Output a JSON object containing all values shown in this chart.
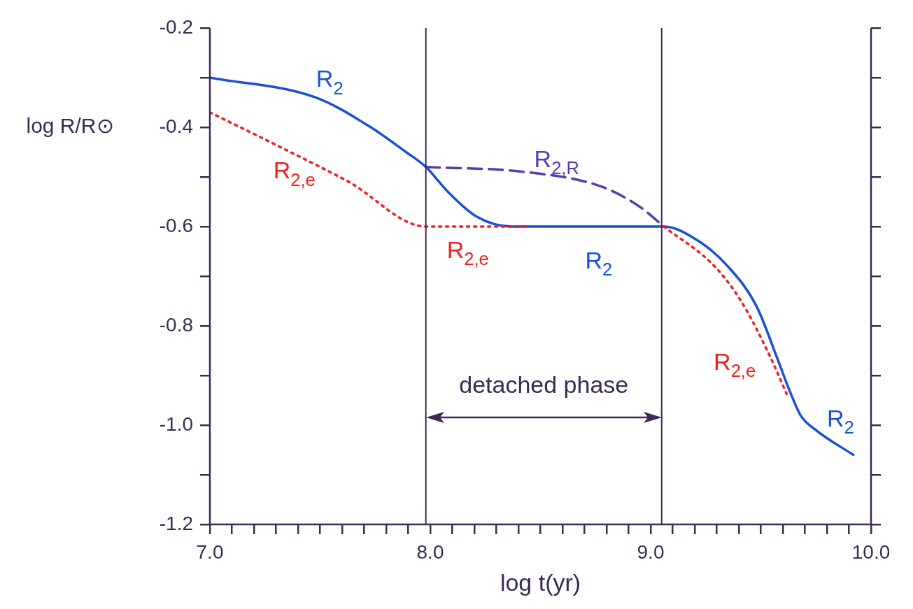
{
  "chart_data": {
    "type": "line",
    "xlabel": "log t(yr)",
    "ylabel": "log R/R⊙",
    "xlim": [
      7.0,
      10.0
    ],
    "ylim": [
      -1.2,
      -0.2
    ],
    "xticks": [
      {
        "value": 7.0,
        "label": "7.0"
      },
      {
        "value": 7.1,
        "label": null
      },
      {
        "value": 7.2,
        "label": null
      },
      {
        "value": 7.3,
        "label": null
      },
      {
        "value": 7.4,
        "label": null
      },
      {
        "value": 7.5,
        "label": null
      },
      {
        "value": 7.6,
        "label": null
      },
      {
        "value": 7.7,
        "label": null
      },
      {
        "value": 7.8,
        "label": null
      },
      {
        "value": 7.9,
        "label": null
      },
      {
        "value": 8.0,
        "label": "8.0"
      },
      {
        "value": 8.1,
        "label": null
      },
      {
        "value": 8.2,
        "label": null
      },
      {
        "value": 8.3,
        "label": null
      },
      {
        "value": 8.4,
        "label": null
      },
      {
        "value": 8.5,
        "label": null
      },
      {
        "value": 8.6,
        "label": null
      },
      {
        "value": 8.7,
        "label": null
      },
      {
        "value": 8.8,
        "label": null
      },
      {
        "value": 8.9,
        "label": null
      },
      {
        "value": 9.0,
        "label": "9.0"
      },
      {
        "value": 9.1,
        "label": null
      },
      {
        "value": 9.2,
        "label": null
      },
      {
        "value": 9.3,
        "label": null
      },
      {
        "value": 9.4,
        "label": null
      },
      {
        "value": 9.5,
        "label": null
      },
      {
        "value": 9.6,
        "label": null
      },
      {
        "value": 9.7,
        "label": null
      },
      {
        "value": 9.8,
        "label": null
      },
      {
        "value": 9.9,
        "label": null
      },
      {
        "value": 10.0,
        "label": "10.0"
      }
    ],
    "yticks": [
      -0.2,
      {
        "value": -0.3,
        "label": null
      },
      -0.4,
      {
        "value": -0.5,
        "label": null
      },
      -0.6,
      {
        "value": -0.7,
        "label": null
      },
      -0.8,
      {
        "value": -0.9,
        "label": null
      },
      {
        "value": -1.0,
        "label": "-1.0"
      },
      {
        "value": -1.1,
        "label": null
      },
      -1.2
    ],
    "grid": false,
    "legend": false,
    "marker": "none",
    "series": [
      {
        "name": "R$_{2}$",
        "color": "#1a50d8",
        "line_style": "solid",
        "x": [
          7.0,
          7.48,
          7.73,
          7.89,
          7.98,
          8.08,
          8.21,
          8.37,
          8.59,
          9.06,
          9.22,
          9.35,
          9.48,
          9.57,
          9.63,
          9.68,
          9.75,
          9.92
        ],
        "values": [
          -0.3,
          -0.34,
          -0.4,
          -0.45,
          -0.48,
          -0.53,
          -0.58,
          -0.6,
          -0.6,
          -0.6,
          -0.63,
          -0.68,
          -0.76,
          -0.86,
          -0.93,
          -0.98,
          -1.01,
          -1.06
        ]
      },
      {
        "name": "R$_{2,e}$",
        "color": "#f02020",
        "line_style": "dotted",
        "x": [
          7.0,
          7.32,
          7.63,
          7.98,
          8.43,
          8.7,
          9.06,
          9.29,
          9.41,
          9.54,
          9.62
        ],
        "values": [
          -0.37,
          -0.44,
          -0.51,
          -0.6,
          -0.6,
          null,
          -0.6,
          -0.68,
          -0.75,
          -0.86,
          -0.94
        ]
      },
      {
        "name": "R$_{2,R}$",
        "color": "#5a3ab0",
        "line_style": "dashed",
        "x": [
          7.98,
          8.43,
          8.78,
          8.95,
          9.06
        ],
        "values": [
          -0.48,
          -0.49,
          -0.52,
          -0.56,
          -0.6
        ]
      }
    ],
    "ref_lines": [
      {
        "axis": "x",
        "value": 7.98,
        "color": "#3a2a55"
      },
      {
        "axis": "x",
        "value": 9.05,
        "color": "#3a2a55"
      }
    ],
    "annotations": [
      "detached phase"
    ]
  }
}
